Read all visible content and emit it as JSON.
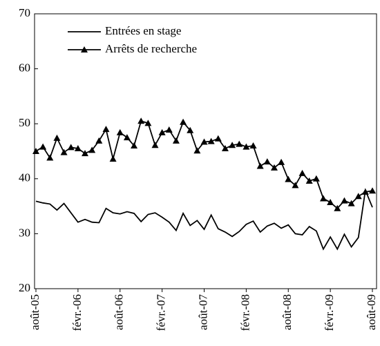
{
  "chart_data": {
    "type": "line",
    "categories": [
      "août-05",
      null,
      null,
      null,
      null,
      null,
      "févr.-06",
      null,
      null,
      null,
      null,
      null,
      "août-06",
      null,
      null,
      null,
      null,
      null,
      "févr.-07",
      null,
      null,
      null,
      null,
      null,
      "août-07",
      null,
      null,
      null,
      null,
      null,
      "févr.-08",
      null,
      null,
      null,
      null,
      null,
      "août-08",
      null,
      null,
      null,
      null,
      null,
      "févr.-09",
      null,
      null,
      null,
      null,
      null,
      "août-09"
    ],
    "series": [
      {
        "name": "Entrées en stage",
        "color": "#000000",
        "marker": "none",
        "values": [
          35.9,
          35.6,
          35.4,
          34.3,
          35.5,
          33.8,
          32.1,
          32.6,
          32.1,
          32,
          34.6,
          33.8,
          33.6,
          34,
          33.7,
          32.2,
          33.5,
          33.8,
          33,
          32.1,
          30.6,
          33.7,
          31.5,
          32.4,
          30.8,
          33.4,
          30.9,
          30.3,
          29.5,
          30.4,
          31.7,
          32.3,
          30.3,
          31.4,
          31.9,
          31,
          31.6,
          30,
          29.8,
          31.3,
          30.5,
          27.2,
          29.4,
          27.2,
          29.9,
          27.6,
          29.3,
          37.9,
          34.8
        ]
      },
      {
        "name": "Arrêts de recherche",
        "color": "#000000",
        "marker": "triangle",
        "values": [
          45,
          45.8,
          43.8,
          47.4,
          44.8,
          45.7,
          45.5,
          44.6,
          45.2,
          46.9,
          49,
          43.6,
          48.4,
          47.5,
          46,
          50.5,
          50.1,
          46.1,
          48.4,
          48.9,
          46.9,
          50.3,
          48.8,
          45.1,
          46.7,
          46.8,
          47.3,
          45.5,
          46.1,
          46.3,
          45.8,
          46,
          42.3,
          43.1,
          42,
          43,
          39.9,
          38.8,
          41,
          39.6,
          40,
          36.4,
          35.7,
          34.6,
          36,
          35.5,
          36.8,
          37.6,
          37.8
        ]
      }
    ],
    "ylim": [
      20,
      70
    ],
    "yticks": [
      20,
      30,
      40,
      50,
      60,
      70
    ],
    "grid": false,
    "legend": "top-left"
  }
}
